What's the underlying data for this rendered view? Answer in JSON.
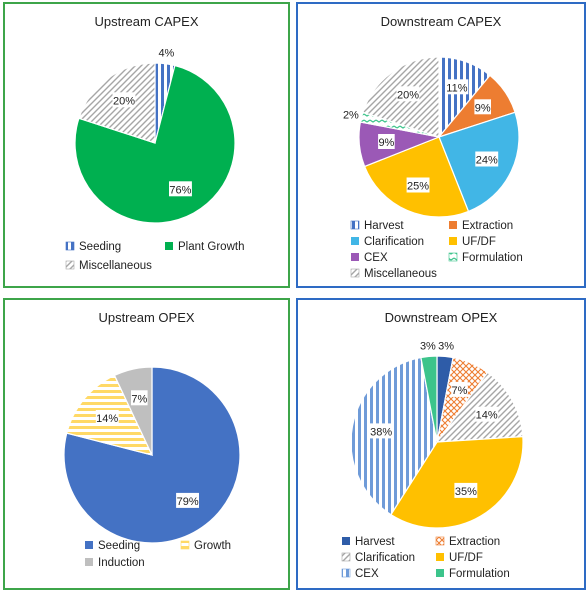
{
  "colors": {
    "border_green": "#3da54a",
    "border_blue": "#2e6bc4",
    "seeding_blue": "#4472c4",
    "plant_green": "#00b050",
    "misc_gray": "#a6a6a6",
    "extraction_orange": "#ed7d31",
    "clarification_cyan": "#41b6e6",
    "ufdf_gold": "#ffc000",
    "cex_purple": "#9b59b6",
    "formulation_teal": "#3cc48b",
    "growth_yellow": "#ffd966",
    "induction_gray": "#bfbfbf"
  },
  "chart_data": [
    {
      "type": "pie",
      "title": "Upstream CAPEX",
      "slices": [
        {
          "label": "Seeding",
          "value": 4,
          "pct_label": "4%",
          "color": "#4472c4",
          "pattern": "vlines"
        },
        {
          "label": "Plant Growth",
          "value": 76,
          "pct_label": "76%",
          "color": "#00b050",
          "pattern": "solid"
        },
        {
          "label": "Miscellaneous",
          "value": 20,
          "pct_label": "20%",
          "color": "#a6a6a6",
          "pattern": "diag"
        }
      ],
      "legend": [
        [
          "Seeding",
          "Plant Growth"
        ],
        [
          "Miscellaneous"
        ]
      ]
    },
    {
      "type": "pie",
      "title": "Downstream CAPEX",
      "slices": [
        {
          "label": "Harvest",
          "value": 11,
          "pct_label": "11%",
          "color": "#4472c4",
          "pattern": "vlines"
        },
        {
          "label": "Extraction",
          "value": 9,
          "pct_label": "9%",
          "color": "#ed7d31",
          "pattern": "solid"
        },
        {
          "label": "Clarification",
          "value": 24,
          "pct_label": "24%",
          "color": "#41b6e6",
          "pattern": "solid"
        },
        {
          "label": "UF/DF",
          "value": 25,
          "pct_label": "25%",
          "color": "#ffc000",
          "pattern": "solid"
        },
        {
          "label": "CEX",
          "value": 9,
          "pct_label": "9%",
          "color": "#9b59b6",
          "pattern": "solid"
        },
        {
          "label": "Formulation",
          "value": 2,
          "pct_label": "2%",
          "color": "#3cc48b",
          "pattern": "zigzag"
        },
        {
          "label": "Miscellaneous",
          "value": 20,
          "pct_label": "20%",
          "color": "#a6a6a6",
          "pattern": "diag"
        }
      ],
      "legend": [
        [
          "Harvest",
          "Extraction"
        ],
        [
          "Clarification",
          "UF/DF"
        ],
        [
          "CEX",
          "Formulation"
        ],
        [
          "Miscellaneous"
        ]
      ]
    },
    {
      "type": "pie",
      "title": "Upstream OPEX",
      "slices": [
        {
          "label": "Seeding",
          "value": 79,
          "pct_label": "79%",
          "color": "#4472c4",
          "pattern": "solid"
        },
        {
          "label": "Growth",
          "value": 14,
          "pct_label": "14%",
          "color": "#ffd966",
          "pattern": "hlines"
        },
        {
          "label": "Induction",
          "value": 7,
          "pct_label": "7%",
          "color": "#bfbfbf",
          "pattern": "solid"
        }
      ],
      "legend": [
        [
          "Seeding",
          "Growth"
        ],
        [
          "Induction"
        ]
      ]
    },
    {
      "type": "pie",
      "title": "Downstream OPEX",
      "slices": [
        {
          "label": "Harvest",
          "value": 3,
          "pct_label": "3%",
          "color": "#2e5ca8",
          "pattern": "solid"
        },
        {
          "label": "Extraction",
          "value": 7,
          "pct_label": "7%",
          "color": "#ed7d31",
          "pattern": "check"
        },
        {
          "label": "Clarification",
          "value": 14,
          "pct_label": "14%",
          "color": "#a6a6a6",
          "pattern": "diag"
        },
        {
          "label": "UF/DF",
          "value": 35,
          "pct_label": "35%",
          "color": "#ffc000",
          "pattern": "solid"
        },
        {
          "label": "CEX",
          "value": 38,
          "pct_label": "38%",
          "color": "#6f9bd8",
          "pattern": "vlines"
        },
        {
          "label": "Formulation",
          "value": 3,
          "pct_label": "3%",
          "color": "#3cc48b",
          "pattern": "solid"
        }
      ],
      "legend": [
        [
          "Harvest",
          "Extraction"
        ],
        [
          "Clarification",
          "UF/DF"
        ],
        [
          "CEX",
          "Formulation"
        ]
      ]
    }
  ]
}
